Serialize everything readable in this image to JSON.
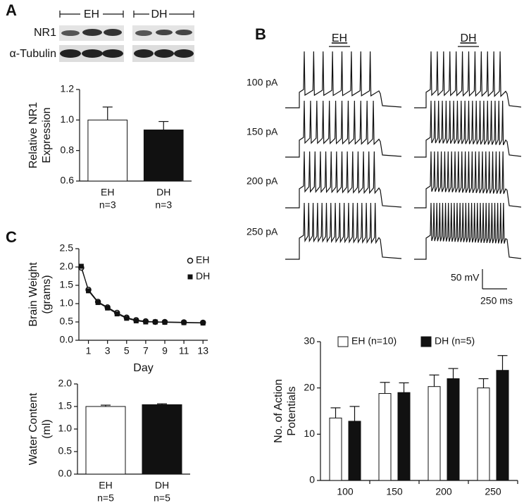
{
  "panel_labels": [
    "A",
    "B",
    "C"
  ],
  "blot": {
    "groups": [
      "EH",
      "DH"
    ],
    "rows": [
      "NR1",
      "α-Tubulin"
    ]
  },
  "traces": {
    "groups": [
      "EH",
      "DH"
    ],
    "currents": [
      "100 pA",
      "150 pA",
      "200 pA",
      "250 pA"
    ],
    "scale_bar": {
      "y": "50 mV",
      "x": "250 ms"
    }
  },
  "chart_data": [
    {
      "type": "bar",
      "y_label": [
        "Relative NR1",
        "Expression"
      ],
      "categories": [
        "EH",
        "DH"
      ],
      "sublabels": [
        "n=3",
        "n=3"
      ],
      "values": [
        1.0,
        0.935
      ],
      "errors": [
        0.085,
        0.055
      ],
      "colors": [
        "#ffffff",
        "#111111"
      ],
      "ylim": [
        0.6,
        1.2
      ],
      "yticks": [
        0.6,
        0.8,
        {
          "value": 1,
          "label": "1.0"
        },
        1.2
      ]
    },
    {
      "type": "line",
      "y_label": [
        "Brain Weight",
        "(grams)"
      ],
      "x_label": "Day",
      "legend": "upper right",
      "x": [
        0.25,
        1,
        2,
        3,
        4,
        5,
        6,
        7,
        8,
        9,
        11,
        13
      ],
      "series": [
        {
          "name": "EH",
          "marker": "circle",
          "color": "#111111",
          "values": [
            1.98,
            1.38,
            1.05,
            0.9,
            0.75,
            0.62,
            0.55,
            0.52,
            0.5,
            0.5,
            0.49,
            0.48
          ]
        },
        {
          "name": "DH",
          "marker": "square",
          "color": "#111111",
          "values": [
            2.02,
            1.35,
            1.03,
            0.88,
            0.72,
            0.6,
            0.53,
            0.5,
            0.5,
            0.49,
            0.48,
            0.47
          ]
        }
      ],
      "xlim": [
        0,
        13.5
      ],
      "xticks": [
        1,
        3,
        5,
        7,
        9,
        11,
        13
      ],
      "ylim": [
        0,
        2.5
      ],
      "yticks": [
        {
          "value": 0,
          "label": "0.0"
        },
        0.5,
        {
          "value": 1,
          "label": "1.0"
        },
        1.5,
        {
          "value": 2,
          "label": "2.0"
        },
        2.5
      ]
    },
    {
      "type": "bar",
      "y_label": [
        "Water Content",
        "(ml)"
      ],
      "categories": [
        "EH",
        "DH"
      ],
      "sublabels": [
        "n=5",
        "n=5"
      ],
      "values": [
        1.5,
        1.54
      ],
      "errors": [
        0.03,
        0.02
      ],
      "colors": [
        "#ffffff",
        "#111111"
      ],
      "ylim": [
        0,
        2
      ],
      "yticks": [
        {
          "value": 0,
          "label": "0.0"
        },
        0.5,
        {
          "value": 1,
          "label": "1.0"
        },
        1.5,
        {
          "value": 2,
          "label": "2.0"
        }
      ]
    },
    {
      "type": "bar",
      "y_label": [
        "No. of  Action",
        "Potentials"
      ],
      "legend": "top",
      "categories": [
        "100",
        "150",
        "200",
        "250"
      ],
      "series": [
        {
          "name": "EH (n=10)",
          "color": "#ffffff",
          "values": [
            13.5,
            18.8,
            20.3,
            20
          ],
          "errors": [
            2.2,
            2.4,
            2.5,
            2.0
          ]
        },
        {
          "name": "DH (n=5)",
          "color": "#111111",
          "values": [
            12.8,
            19,
            22,
            23.8
          ],
          "errors": [
            3.2,
            2.1,
            2.2,
            3.2
          ]
        }
      ],
      "ylim": [
        0,
        30
      ],
      "yticks": [
        0,
        10,
        20,
        30
      ]
    }
  ]
}
